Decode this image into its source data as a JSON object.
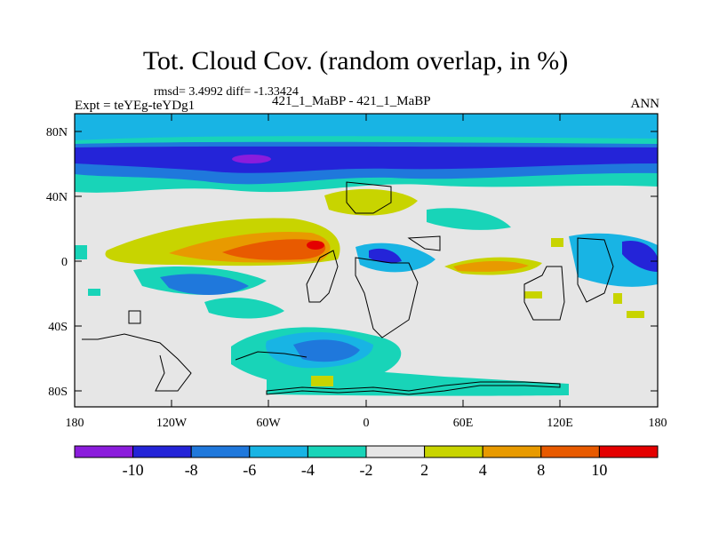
{
  "header": {
    "title": "Tot. Cloud Cov. (random overlap, in %)",
    "stats": "rmsd= 3.4992 diff= -1.33424",
    "experiment": "Expt = teYEg-teYDg1",
    "case_label": "421_1_MaBP - 421_1_MaBP",
    "season": "ANN"
  },
  "map": {
    "lon_ticks": [
      "180",
      "120W",
      "60W",
      "0",
      "60E",
      "120E",
      "180"
    ],
    "lat_ticks": [
      "80N",
      "40N",
      "0",
      "40S",
      "80S"
    ],
    "background_color": "#e6e6e6"
  },
  "colorbar": {
    "colors": [
      "#8b1cdc",
      "#2424d8",
      "#1f78dc",
      "#18b4e4",
      "#18d4b8",
      "#e6e6e6",
      "#c8d400",
      "#e89a00",
      "#e85a00",
      "#e40000"
    ],
    "labels": [
      "-10",
      "-8",
      "-6",
      "-4",
      "-2",
      "2",
      "4",
      "8",
      "10"
    ]
  }
}
